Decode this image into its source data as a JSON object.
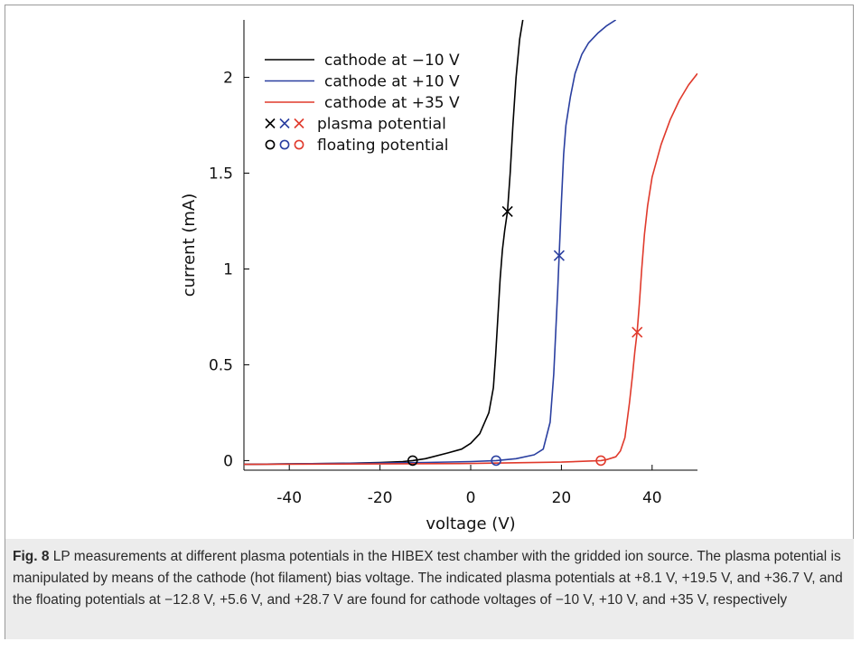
{
  "chart_data": {
    "type": "line",
    "xlabel": "voltage  (V)",
    "ylabel": "current  (mA)",
    "xlim": [
      -50,
      50
    ],
    "ylim": [
      -0.05,
      2.3
    ],
    "xticks": [
      -40,
      -20,
      0,
      20,
      40
    ],
    "yticks": [
      0,
      0.5,
      1,
      1.5,
      2
    ],
    "xtick_labels": [
      "-40",
      "-20",
      "0",
      "20",
      "40"
    ],
    "ytick_labels": [
      "0",
      "0.5",
      "1",
      "1.5",
      "2"
    ],
    "grid": false,
    "legend_position": "top-left",
    "series": [
      {
        "name": "cathode at −10 V",
        "color": "#000000",
        "x": [
          -50,
          -30,
          -20,
          -15,
          -12.8,
          -10,
          -5,
          -2,
          0,
          2,
          4,
          5,
          5.5,
          6,
          6.5,
          7,
          7.5,
          8.1,
          8.7,
          9.3,
          10,
          10.8,
          11.5
        ],
        "y": [
          -0.02,
          -0.015,
          -0.01,
          -0.005,
          0,
          0.01,
          0.04,
          0.06,
          0.09,
          0.14,
          0.25,
          0.38,
          0.55,
          0.75,
          0.95,
          1.1,
          1.2,
          1.3,
          1.5,
          1.75,
          2.0,
          2.2,
          2.3
        ]
      },
      {
        "name": "cathode at +10 V",
        "color": "#2a3fa0",
        "x": [
          -50,
          -10,
          0,
          5.6,
          10,
          14,
          16,
          17.5,
          18.3,
          18.8,
          19.2,
          19.5,
          20,
          20.5,
          21,
          22,
          23,
          24.5,
          26,
          28,
          30,
          32
        ],
        "y": [
          -0.02,
          -0.01,
          -0.005,
          0,
          0.01,
          0.03,
          0.06,
          0.2,
          0.45,
          0.7,
          0.9,
          1.07,
          1.35,
          1.6,
          1.75,
          1.9,
          2.02,
          2.12,
          2.18,
          2.23,
          2.27,
          2.3
        ]
      },
      {
        "name": "cathode at +35 V",
        "color": "#e03a2c",
        "x": [
          -50,
          0,
          20,
          28.7,
          30,
          32,
          33,
          34,
          35,
          35.7,
          36.2,
          36.7,
          37.2,
          37.7,
          38.3,
          39,
          40,
          42,
          44,
          46,
          48,
          50
        ],
        "y": [
          -0.02,
          -0.015,
          -0.008,
          0,
          0.005,
          0.02,
          0.05,
          0.12,
          0.3,
          0.45,
          0.57,
          0.67,
          0.82,
          1.0,
          1.18,
          1.33,
          1.48,
          1.65,
          1.78,
          1.88,
          1.96,
          2.02
        ]
      }
    ],
    "markers": {
      "plasma_potential": {
        "symbol": "x",
        "points": [
          {
            "x": 8.1,
            "y": 1.3,
            "color": "#000000"
          },
          {
            "x": 19.5,
            "y": 1.07,
            "color": "#2a3fa0"
          },
          {
            "x": 36.7,
            "y": 0.67,
            "color": "#e03a2c"
          }
        ]
      },
      "floating_potential": {
        "symbol": "o",
        "points": [
          {
            "x": -12.8,
            "y": 0,
            "color": "#000000"
          },
          {
            "x": 5.6,
            "y": 0,
            "color": "#2a3fa0"
          },
          {
            "x": 28.7,
            "y": 0,
            "color": "#e03a2c"
          }
        ]
      }
    },
    "legend": {
      "entries": [
        {
          "label": "cathode at −10 V",
          "kind": "line",
          "color": "#000000"
        },
        {
          "label": "cathode at +10 V",
          "kind": "line",
          "color": "#2a3fa0"
        },
        {
          "label": "cathode at +35 V",
          "kind": "line",
          "color": "#e03a2c"
        },
        {
          "label": "plasma potential",
          "kind": "x",
          "colors": [
            "#000000",
            "#2a3fa0",
            "#e03a2c"
          ]
        },
        {
          "label": "floating potential",
          "kind": "o",
          "colors": [
            "#000000",
            "#2a3fa0",
            "#e03a2c"
          ]
        }
      ]
    }
  },
  "caption": {
    "figure_label": "Fig. 8",
    "text": "LP measurements at different plasma potentials in the HIBEX test chamber with the gridded ion source. The plasma potential is manipulated by means of the cathode (hot filament) bias voltage. The indicated plasma potentials at +8.1 V, +19.5 V, and +36.7 V, and the floating potentials at −12.8 V, +5.6 V, and +28.7 V are found for cathode voltages of −10 V, +10 V, and +35 V, respectively"
  }
}
